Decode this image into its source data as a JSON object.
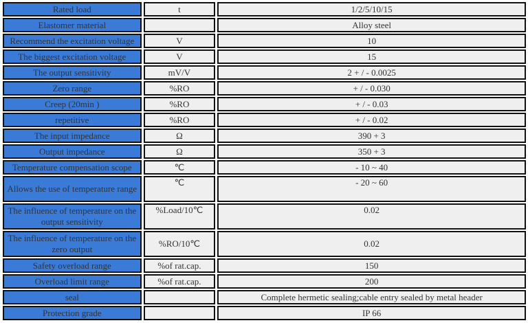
{
  "spec_table": {
    "rows": [
      {
        "parameter": "Rated load",
        "unit": "t",
        "value": "1/2/5/10/15"
      },
      {
        "parameter": "Elastomer material",
        "unit": "",
        "value": "Alloy steel"
      },
      {
        "parameter": "Recommend the excitation voltage",
        "unit": "V",
        "value": "10"
      },
      {
        "parameter": "The biggest excitation voltage",
        "unit": "V",
        "value": "15"
      },
      {
        "parameter": "The output sensitivity",
        "unit": "mV/V",
        "value": "2 + / - 0.0025"
      },
      {
        "parameter": "Zero range",
        "unit": "%RO",
        "value": "+ / - 0.030"
      },
      {
        "parameter": "Creep (20min )",
        "unit": "%RO",
        "value": "+ / - 0.03"
      },
      {
        "parameter": "repetitive",
        "unit": "%RO",
        "value": "+ / - 0.02"
      },
      {
        "parameter": "The input impedance",
        "unit": "Ω",
        "value": "390 + 3"
      },
      {
        "parameter": "Output impedance",
        "unit": "Ω",
        "value": "350 + 3"
      },
      {
        "parameter": "Temperature compensation scope",
        "unit": "℃",
        "value": "- 10 ~ 40"
      },
      {
        "parameter": "Allows the use of temperature range",
        "unit": "℃",
        "value": "- 20 ~ 60"
      },
      {
        "parameter": "The influence of temperature on the output sensitivity",
        "unit": "%Load/10℃",
        "value": "0.02"
      },
      {
        "parameter": "The influence of temperature on the zero output",
        "unit": "%RO/10℃",
        "value": "0.02"
      },
      {
        "parameter": "Safety overload range",
        "unit": "%of rat.cap.",
        "value": "150"
      },
      {
        "parameter": "Overload limit range",
        "unit": "%of rat.cap.",
        "value": "200"
      },
      {
        "parameter": "seal",
        "unit": "",
        "value": "Complete hermetic sealing;cable entry sealed by metal header"
      },
      {
        "parameter": "Protection grade",
        "unit": "",
        "value": "IP 66"
      }
    ],
    "colors": {
      "parameter_bg": "#3a7bd8",
      "cell_bg": "#efefef",
      "border": "#111111",
      "text": "#333333"
    }
  }
}
